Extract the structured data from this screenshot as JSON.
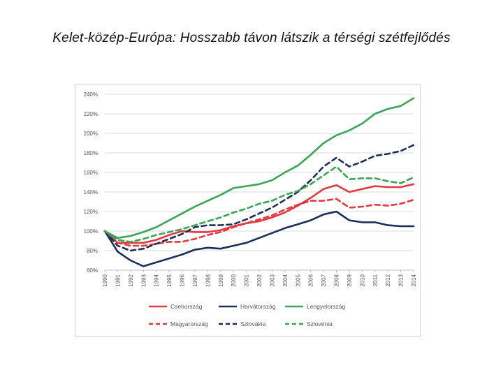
{
  "slide": {
    "title": "Kelet-közép-Európa: Hosszabb távon látszik a térségi szétfejlődés"
  },
  "chart_data": {
    "type": "line",
    "title": "",
    "xlabel": "",
    "ylabel": "",
    "x": [
      1990,
      1991,
      1992,
      1993,
      1994,
      1995,
      1996,
      1997,
      1998,
      1999,
      2000,
      2001,
      2002,
      2003,
      2004,
      2005,
      2006,
      2007,
      2008,
      2009,
      2010,
      2011,
      2012,
      2013,
      2014
    ],
    "x_tick_labels": [
      "1990",
      "1991",
      "1992",
      "1993",
      "1994",
      "1995",
      "1996",
      "1997",
      "1998",
      "1999",
      "2000",
      "2001",
      "2002",
      "2003",
      "2004",
      "2005",
      "2006",
      "2007",
      "2008",
      "2009",
      "2010",
      "2011",
      "2012",
      "2013",
      "2014"
    ],
    "ylim": [
      60,
      240
    ],
    "y_ticks": [
      60,
      80,
      100,
      120,
      140,
      160,
      180,
      200,
      220,
      240
    ],
    "y_tick_labels": [
      "60%",
      "80%",
      "100%",
      "120%",
      "140%",
      "160%",
      "180%",
      "200%",
      "220%",
      "240%"
    ],
    "grid": true,
    "legend_position": "bottom",
    "series": [
      {
        "name": "Csehország",
        "color": "#e03a3e",
        "dash": false,
        "values": [
          100,
          88,
          88,
          88,
          91,
          96,
          100,
          99,
          99,
          101,
          105,
          108,
          110,
          114,
          119,
          126,
          134,
          143,
          147,
          140,
          143,
          146,
          145,
          145,
          148
        ]
      },
      {
        "name": "Horvátország",
        "color": "#1c2f5a",
        "dash": false,
        "values": [
          100,
          79,
          70,
          64,
          68,
          72,
          76,
          81,
          83,
          82,
          85,
          88,
          93,
          98,
          103,
          107,
          111,
          117,
          120,
          111,
          109,
          109,
          106,
          105,
          105
        ]
      },
      {
        "name": "Lengyelország",
        "color": "#3aa655",
        "dash": false,
        "values": [
          100,
          93,
          95,
          99,
          104,
          111,
          118,
          125,
          131,
          137,
          144,
          146,
          148,
          152,
          160,
          167,
          178,
          190,
          198,
          203,
          210,
          220,
          225,
          228,
          236
        ]
      },
      {
        "name": "Magyarország",
        "color": "#e03a3e",
        "dash": true,
        "values": [
          100,
          88,
          85,
          85,
          87,
          89,
          89,
          92,
          96,
          99,
          104,
          108,
          112,
          116,
          122,
          127,
          131,
          131,
          133,
          124,
          125,
          127,
          126,
          128,
          132
        ]
      },
      {
        "name": "Szlovákia",
        "color": "#1c2f5a",
        "dash": true,
        "values": [
          100,
          85,
          80,
          82,
          87,
          92,
          97,
          104,
          106,
          106,
          107,
          112,
          118,
          124,
          132,
          140,
          152,
          166,
          175,
          166,
          171,
          177,
          179,
          182,
          188
        ]
      },
      {
        "name": "Szlovénia",
        "color": "#3aa655",
        "dash": true,
        "values": [
          100,
          91,
          89,
          92,
          96,
          99,
          102,
          106,
          110,
          114,
          119,
          123,
          128,
          131,
          137,
          141,
          148,
          157,
          166,
          153,
          154,
          154,
          151,
          149,
          155
        ]
      }
    ]
  }
}
